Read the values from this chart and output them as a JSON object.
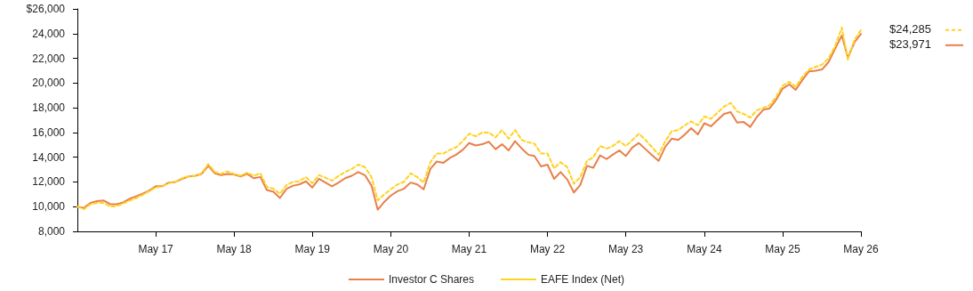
{
  "chart_data": {
    "type": "line",
    "x": [
      "2016-05",
      "2016-06",
      "2016-07",
      "2016-08",
      "2016-09",
      "2016-10",
      "2016-11",
      "2016-12",
      "2017-01",
      "2017-02",
      "2017-03",
      "2017-04",
      "2017-05",
      "2017-06",
      "2017-07",
      "2017-08",
      "2017-09",
      "2017-10",
      "2017-11",
      "2017-12",
      "2018-01",
      "2018-02",
      "2018-03",
      "2018-04",
      "2018-05",
      "2018-06",
      "2018-07",
      "2018-08",
      "2018-09",
      "2018-10",
      "2018-11",
      "2018-12",
      "2019-01",
      "2019-02",
      "2019-03",
      "2019-04",
      "2019-05",
      "2019-06",
      "2019-07",
      "2019-08",
      "2019-09",
      "2019-10",
      "2019-11",
      "2019-12",
      "2020-01",
      "2020-02",
      "2020-03",
      "2020-04",
      "2020-05",
      "2020-06",
      "2020-07",
      "2020-08",
      "2020-09",
      "2020-10",
      "2020-11",
      "2020-12",
      "2021-01",
      "2021-02",
      "2021-03",
      "2021-04",
      "2021-05",
      "2021-06",
      "2021-07",
      "2021-08",
      "2021-09",
      "2021-10",
      "2021-11",
      "2021-12",
      "2022-01",
      "2022-02",
      "2022-03",
      "2022-04",
      "2022-05",
      "2022-06",
      "2022-07",
      "2022-08",
      "2022-09",
      "2022-10",
      "2022-11",
      "2022-12",
      "2023-01",
      "2023-02",
      "2023-03",
      "2023-04",
      "2023-05",
      "2023-06",
      "2023-07",
      "2023-08",
      "2023-09",
      "2023-10",
      "2023-11",
      "2023-12",
      "2024-01",
      "2024-02",
      "2024-03",
      "2024-04",
      "2024-05",
      "2024-06",
      "2024-07",
      "2024-08",
      "2024-09",
      "2024-10",
      "2024-11",
      "2024-12",
      "2025-01",
      "2025-02",
      "2025-03",
      "2025-04",
      "2025-05",
      "2025-06",
      "2025-07",
      "2025-08",
      "2025-09",
      "2025-10",
      "2025-11",
      "2025-12",
      "2026-01",
      "2026-02",
      "2026-03",
      "2026-04",
      "2026-05"
    ],
    "series": [
      {
        "name": "Investor C Shares",
        "color": "#e8804a",
        "line_style": "solid",
        "values": [
          10000,
          9900,
          10300,
          10450,
          10500,
          10200,
          10200,
          10350,
          10650,
          10850,
          11050,
          11300,
          11650,
          11650,
          11950,
          12000,
          12250,
          12450,
          12500,
          12650,
          13300,
          12700,
          12550,
          12650,
          12600,
          12450,
          12650,
          12300,
          12400,
          11350,
          11200,
          10700,
          11450,
          11700,
          11800,
          12050,
          11550,
          12250,
          11950,
          11650,
          11950,
          12300,
          12500,
          12800,
          12550,
          11700,
          9750,
          10400,
          10900,
          11250,
          11450,
          11950,
          11800,
          11400,
          13050,
          13650,
          13550,
          13950,
          14200,
          14600,
          15150,
          14950,
          15050,
          15250,
          14650,
          15050,
          14550,
          15300,
          14700,
          14200,
          14100,
          13250,
          13400,
          12250,
          12800,
          12200,
          11150,
          11750,
          13300,
          13150,
          14150,
          13850,
          14200,
          14550,
          14100,
          14800,
          15150,
          14650,
          14150,
          13700,
          14850,
          15500,
          15400,
          15850,
          16350,
          15850,
          16750,
          16500,
          17000,
          17500,
          17650,
          16800,
          16850,
          16450,
          17250,
          17850,
          17950,
          18650,
          19550,
          19900,
          19450,
          20250,
          20950,
          21000,
          21100,
          21700,
          22800,
          23850,
          22050,
          23300,
          23971
        ]
      },
      {
        "name": "EAFE Index (Net)",
        "color": "#ffd21f",
        "line_style": "dashed",
        "values": [
          10000,
          9800,
          10200,
          10300,
          10300,
          10000,
          10050,
          10250,
          10500,
          10700,
          10950,
          11250,
          11550,
          11650,
          11900,
          12000,
          12300,
          12450,
          12500,
          12700,
          13450,
          12800,
          12650,
          12850,
          12650,
          12500,
          12750,
          12500,
          12700,
          11600,
          11450,
          11050,
          11750,
          12000,
          12050,
          12400,
          11900,
          12550,
          12350,
          12100,
          12500,
          12800,
          13050,
          13400,
          13200,
          12400,
          10500,
          11000,
          11400,
          11800,
          12000,
          12700,
          12400,
          11950,
          13600,
          14300,
          14300,
          14600,
          14800,
          15300,
          15900,
          15700,
          16000,
          16000,
          15600,
          16200,
          15500,
          16200,
          15400,
          15200,
          15100,
          14300,
          14300,
          13100,
          13600,
          13200,
          11850,
          12400,
          13700,
          14000,
          14900,
          14700,
          14900,
          15300,
          14900,
          15400,
          15900,
          15400,
          14800,
          14200,
          15300,
          16100,
          16200,
          16600,
          16900,
          16600,
          17300,
          17100,
          17600,
          18100,
          18400,
          17700,
          17500,
          17200,
          17800,
          18000,
          18200,
          18900,
          19800,
          20100,
          19700,
          20500,
          21100,
          21300,
          21500,
          22000,
          23000,
          24500,
          21900,
          23500,
          24285
        ]
      }
    ],
    "annotations": [
      {
        "text": "$24,285",
        "x": "2026-05",
        "y": 24285
      },
      {
        "text": "$23,971",
        "x": "2026-05",
        "y": 23971
      }
    ],
    "xlim": [
      "2016-05",
      "2026-05"
    ],
    "xticks": [
      {
        "value": "2017-05",
        "label": "May 17"
      },
      {
        "value": "2018-05",
        "label": "May 18"
      },
      {
        "value": "2019-05",
        "label": "May 19"
      },
      {
        "value": "2020-05",
        "label": "May 20"
      },
      {
        "value": "2021-05",
        "label": "May 21"
      },
      {
        "value": "2022-05",
        "label": "May 22"
      },
      {
        "value": "2023-05",
        "label": "May 23"
      },
      {
        "value": "2024-05",
        "label": "May 24"
      },
      {
        "value": "2025-05",
        "label": "May 25"
      },
      {
        "value": "2026-05",
        "label": "May 26"
      }
    ],
    "ylim": [
      8000,
      26000
    ],
    "yticks": [
      {
        "value": 8000,
        "label": "8,000"
      },
      {
        "value": 10000,
        "label": "10,000"
      },
      {
        "value": 12000,
        "label": "12,000"
      },
      {
        "value": 14000,
        "label": "14,000"
      },
      {
        "value": 16000,
        "label": "16,000"
      },
      {
        "value": 18000,
        "label": "18,000"
      },
      {
        "value": 20000,
        "label": "20,000"
      },
      {
        "value": 22000,
        "label": "22,000"
      },
      {
        "value": 24000,
        "label": "24,000"
      },
      {
        "value": 26000,
        "label": "$26,000"
      }
    ],
    "grid": false,
    "legend": "bottom",
    "marker": "none"
  }
}
